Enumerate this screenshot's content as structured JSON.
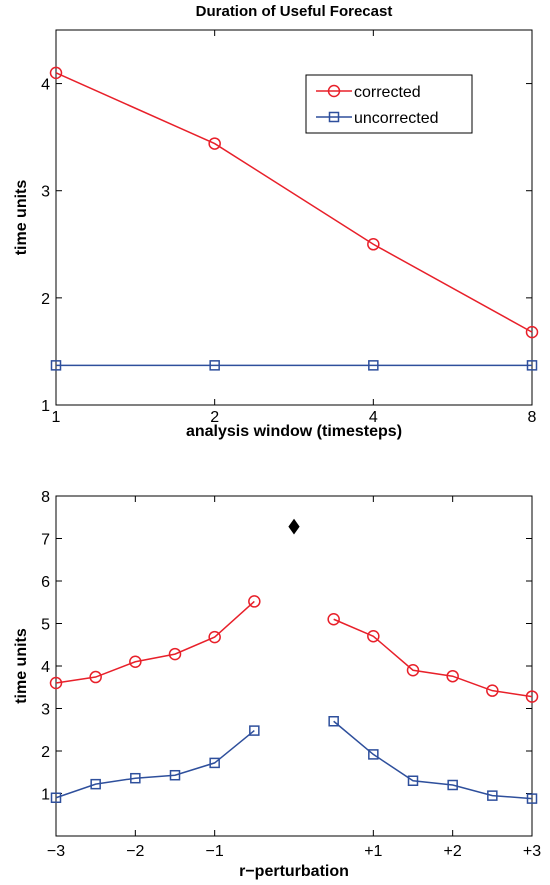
{
  "chart_data": [
    {
      "type": "line",
      "title": "Duration of Useful Forecast",
      "xlabel": "analysis window (timesteps)",
      "ylabel": "time units",
      "x_scale": "log2",
      "x": [
        1,
        2,
        4,
        8
      ],
      "x_tick_labels": [
        "1",
        "2",
        "4",
        "8"
      ],
      "ylim": [
        1,
        4.5
      ],
      "y_ticks": [
        1,
        2,
        3,
        4
      ],
      "y_tick_labels": [
        "1",
        "2",
        "3",
        "4"
      ],
      "grid": false,
      "legend_position": "top-right",
      "series": [
        {
          "name": "corrected",
          "color": "#e8202a",
          "marker": "circle",
          "values": [
            4.1,
            3.44,
            2.5,
            1.68
          ]
        },
        {
          "name": "uncorrected",
          "color": "#2e4f9c",
          "marker": "square",
          "values": [
            1.37,
            1.37,
            1.37,
            1.37
          ]
        }
      ]
    },
    {
      "type": "line",
      "title": "",
      "xlabel": "r−perturbation",
      "ylabel": "time units",
      "xlim": [
        -3,
        3
      ],
      "x_ticks": [
        -3,
        -2,
        -1,
        1,
        2,
        3
      ],
      "x_tick_labels": [
        "−3",
        "−2",
        "−1",
        "+1",
        "+2",
        "+3"
      ],
      "ylim": [
        0,
        8
      ],
      "y_ticks": [
        1,
        2,
        3,
        4,
        5,
        6,
        7,
        8
      ],
      "y_tick_labels": [
        "1",
        "2",
        "3",
        "4",
        "5",
        "6",
        "7",
        "8"
      ],
      "grid": false,
      "series": [
        {
          "color": "#e8202a",
          "marker": "circle",
          "segments": [
            {
              "x": [
                -3,
                -2.5,
                -2,
                -1.5,
                -1,
                -0.5
              ],
              "y": [
                3.6,
                3.74,
                4.1,
                4.28,
                4.68,
                5.52
              ]
            },
            {
              "x": [
                0.5,
                1,
                1.5,
                2,
                2.5,
                3
              ],
              "y": [
                5.1,
                4.7,
                3.9,
                3.76,
                3.42,
                3.28
              ]
            }
          ]
        },
        {
          "color": "#2e4f9c",
          "marker": "square",
          "segments": [
            {
              "x": [
                -3,
                -2.5,
                -2,
                -1.5,
                -1,
                -0.5
              ],
              "y": [
                0.9,
                1.22,
                1.36,
                1.43,
                1.72,
                2.48
              ]
            },
            {
              "x": [
                0.5,
                1,
                1.5,
                2,
                2.5,
                3
              ],
              "y": [
                2.7,
                1.92,
                1.3,
                1.2,
                0.95,
                0.88
              ]
            }
          ]
        },
        {
          "color": "#000000",
          "marker": "diamond",
          "x": [
            0
          ],
          "y": [
            7.28
          ]
        }
      ]
    }
  ]
}
